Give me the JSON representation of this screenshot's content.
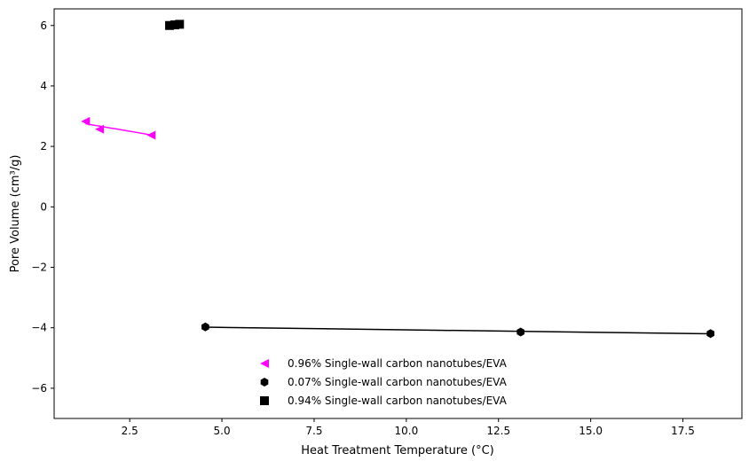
{
  "chart_data": {
    "type": "scatter",
    "title": "",
    "xlabel": "Heat Treatment Temperature (°C)",
    "ylabel": "Pore Volume (cm³/g)",
    "xlim": [
      0.45,
      19.1
    ],
    "ylim": [
      -7,
      6.55
    ],
    "xticks": [
      2.5,
      5.0,
      7.5,
      10.0,
      12.5,
      15.0,
      17.5
    ],
    "xtick_labels": [
      "2.5",
      "5.0",
      "7.5",
      "10.0",
      "12.5",
      "15.0",
      "17.5"
    ],
    "yticks": [
      -6,
      -4,
      -2,
      0,
      2,
      4,
      6
    ],
    "ytick_labels": [
      "−6",
      "−4",
      "−2",
      "0",
      "2",
      "4",
      "6"
    ],
    "grid": false,
    "legend_position": "lower-center",
    "series": [
      {
        "name": "0.96% Single-wall carbon nanotubes/EVA",
        "color": "#ff00ff",
        "marker": "triangle-left",
        "points": [
          [
            1.3,
            2.83
          ],
          [
            1.68,
            2.57
          ],
          [
            3.08,
            2.37
          ]
        ],
        "fit_line": [
          [
            1.3,
            2.75
          ],
          [
            3.08,
            2.38
          ]
        ]
      },
      {
        "name": "0.07% Single-wall carbon nanotubes/EVA",
        "color": "#000000",
        "marker": "hexagon",
        "points": [
          [
            4.55,
            -3.97
          ],
          [
            13.1,
            -4.14
          ],
          [
            18.25,
            -4.19
          ]
        ],
        "fit_line": [
          [
            4.55,
            -3.98
          ],
          [
            18.25,
            -4.2
          ]
        ]
      },
      {
        "name": "0.94% Single-wall carbon nanotubes/EVA",
        "color": "#000000",
        "marker": "square",
        "points": [
          [
            3.58,
            6.0
          ],
          [
            3.72,
            6.02
          ],
          [
            3.85,
            6.04
          ]
        ],
        "fit_line": [
          [
            3.58,
            6.01
          ],
          [
            3.85,
            6.03
          ]
        ]
      }
    ]
  }
}
